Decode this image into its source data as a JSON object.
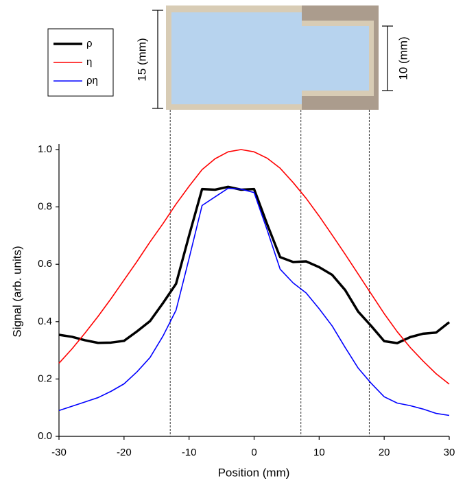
{
  "chart_data": {
    "type": "line",
    "x_label": "Position (mm)",
    "y_label": "Signal (arb. units)",
    "annotations": [
      "15 (mm)",
      "10 (mm)"
    ],
    "x": [
      -30,
      -28,
      -26,
      -24,
      -22,
      -20,
      -18,
      -16,
      -14,
      -12,
      -10,
      -8,
      -6,
      -4,
      -2,
      0,
      2,
      4,
      6,
      8,
      10,
      12,
      14,
      16,
      18,
      20,
      22,
      24,
      26,
      28,
      30
    ],
    "series": [
      {
        "name": "ρ",
        "color": "#000000",
        "width": 3.5,
        "values": [
          0.354,
          0.347,
          0.335,
          0.326,
          0.327,
          0.333,
          0.366,
          0.402,
          0.465,
          0.532,
          0.7,
          0.862,
          0.86,
          0.87,
          0.86,
          0.862,
          0.74,
          0.625,
          0.608,
          0.61,
          0.59,
          0.563,
          0.51,
          0.435,
          0.385,
          0.332,
          0.325,
          0.346,
          0.358,
          0.362,
          0.398
        ]
      },
      {
        "name": "η",
        "color": "#ff0000",
        "width": 1.6,
        "values": [
          0.255,
          0.305,
          0.36,
          0.418,
          0.48,
          0.545,
          0.61,
          0.678,
          0.742,
          0.81,
          0.872,
          0.93,
          0.968,
          0.992,
          1.0,
          0.992,
          0.97,
          0.935,
          0.885,
          0.83,
          0.768,
          0.702,
          0.635,
          0.566,
          0.497,
          0.428,
          0.365,
          0.31,
          0.262,
          0.218,
          0.182
        ]
      },
      {
        "name": "ρη",
        "color": "#0000ff",
        "width": 1.6,
        "values": [
          0.09,
          0.105,
          0.12,
          0.135,
          0.157,
          0.183,
          0.225,
          0.275,
          0.35,
          0.44,
          0.62,
          0.805,
          0.835,
          0.865,
          0.862,
          0.85,
          0.72,
          0.583,
          0.535,
          0.5,
          0.445,
          0.385,
          0.31,
          0.238,
          0.185,
          0.138,
          0.116,
          0.107,
          0.095,
          0.08,
          0.073
        ]
      }
    ],
    "vlines": [
      -12.9,
      7.2,
      17.7
    ],
    "xlim": [
      -30,
      30
    ],
    "xticks": [
      -30,
      -20,
      -10,
      0,
      10,
      20,
      30
    ],
    "ylim": [
      0,
      1.0
    ],
    "yticks": [
      {
        "value": 0,
        "label": "0.0"
      },
      0.2,
      0.4,
      0.6,
      0.8,
      {
        "value": 1.0,
        "label": "1.0"
      }
    ],
    "legend": "top-left"
  }
}
